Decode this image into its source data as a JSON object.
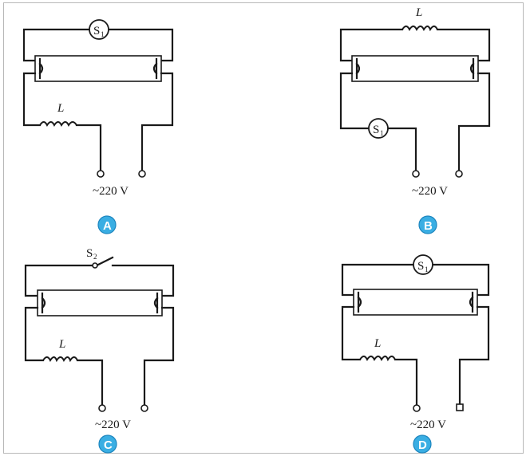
{
  "panels": [
    {
      "option": "A",
      "inductor_label": "L",
      "switch_label": "S",
      "switch_sub": "1",
      "supply_label": "~220 V"
    },
    {
      "option": "B",
      "inductor_label": "L",
      "switch_label": "S",
      "switch_sub": "1",
      "supply_label": "~220 V"
    },
    {
      "option": "C",
      "inductor_label": "L",
      "switch_label": "S",
      "switch_sub": "2",
      "supply_label": "~220 V"
    },
    {
      "option": "D",
      "inductor_label": "L",
      "switch_label": "S",
      "switch_sub": "1",
      "supply_label": "~220 V"
    }
  ],
  "colors": {
    "badge": "#3aaee3",
    "wire": "#1a1a1a"
  }
}
